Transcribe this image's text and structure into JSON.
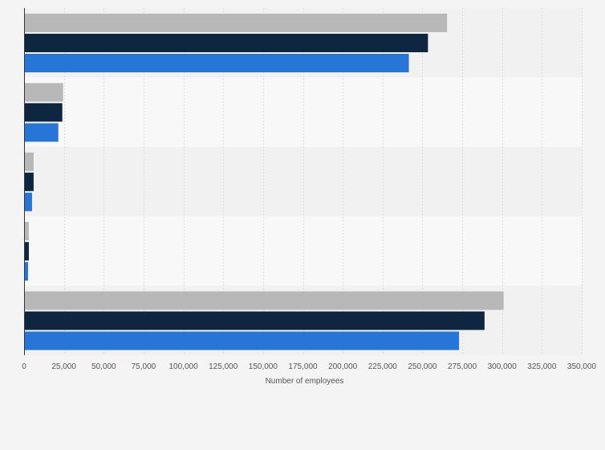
{
  "chart_data": {
    "type": "bar",
    "orientation": "horizontal",
    "title": "",
    "xlabel": "Number of employees",
    "ylabel": "",
    "xlim": [
      0,
      350000
    ],
    "x_ticks": [
      0,
      25000,
      50000,
      75000,
      100000,
      125000,
      150000,
      175000,
      200000,
      225000,
      250000,
      275000,
      300000,
      325000,
      350000
    ],
    "x_tick_labels": [
      "0",
      "25,000",
      "50,000",
      "75,000",
      "100,000",
      "125,000",
      "150,000",
      "175,000",
      "200,000",
      "225,000",
      "250,000",
      "275,000",
      "300,000",
      "325,000",
      "350,000"
    ],
    "grid": true,
    "legend": "none",
    "categories": [
      "",
      "",
      "",
      "",
      ""
    ],
    "series": [
      {
        "color": "#b8b8b8",
        "values": [
          265500,
          24500,
          6000,
          3000,
          301000
        ]
      },
      {
        "color": "#0e2640",
        "values": [
          253500,
          24000,
          6000,
          3000,
          289000
        ]
      },
      {
        "color": "#2875d8",
        "values": [
          241500,
          21500,
          5000,
          2500,
          273000
        ]
      }
    ]
  }
}
